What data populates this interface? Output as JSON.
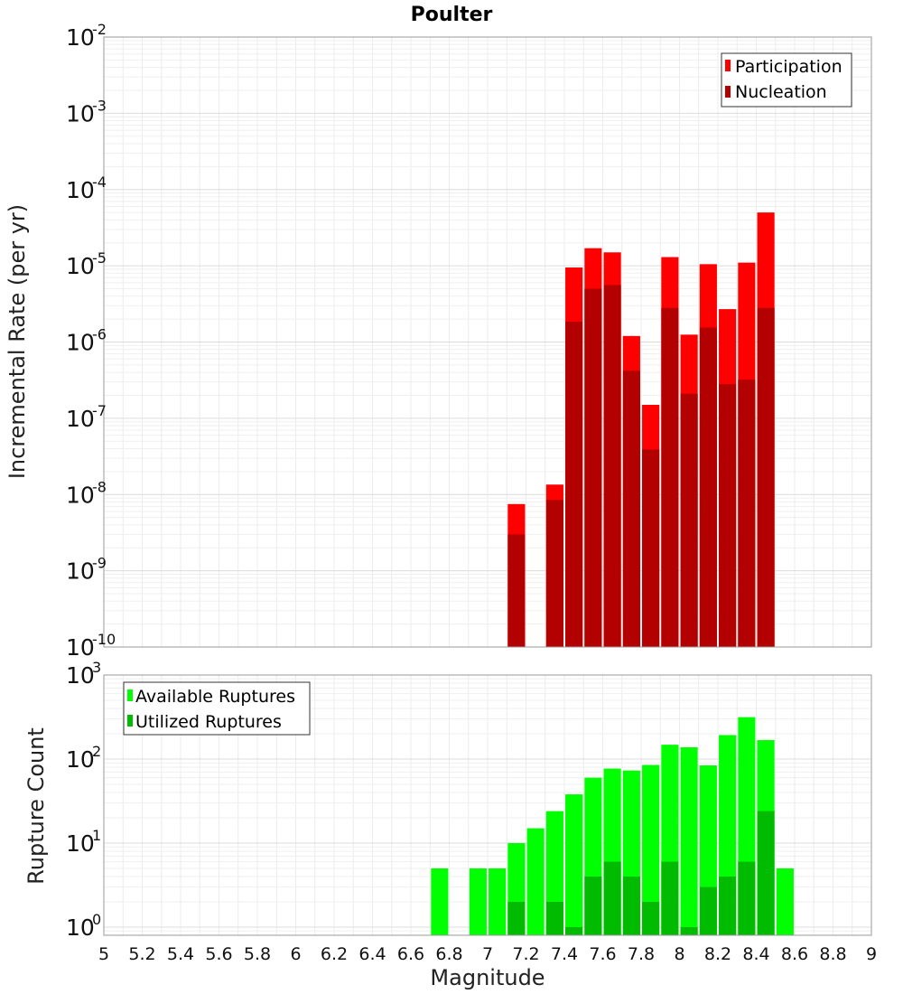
{
  "chart_data": [
    {
      "type": "bar",
      "title": "Poulter",
      "xlabel": "",
      "ylabel": "Incremental Rate (per yr)",
      "yscale": "log",
      "ylim": [
        1e-10,
        0.01
      ],
      "xlim": [
        5,
        9
      ],
      "grid": true,
      "legend_position": "top-right",
      "y_tick_labels": [
        {
          "base": "10",
          "exp": "-2"
        },
        {
          "base": "10",
          "exp": "-3"
        },
        {
          "base": "10",
          "exp": "-4"
        },
        {
          "base": "10",
          "exp": "-5"
        },
        {
          "base": "10",
          "exp": "-6"
        },
        {
          "base": "10",
          "exp": "-7"
        },
        {
          "base": "10",
          "exp": "-8"
        },
        {
          "base": "10",
          "exp": "-9"
        },
        {
          "base": "10",
          "exp": "-10"
        }
      ],
      "bar_width": 0.09,
      "series": [
        {
          "name": "Participation",
          "color": "#ff0000",
          "points": [
            {
              "x": 7.15,
              "y": 7.5e-09
            },
            {
              "x": 7.35,
              "y": 1.35e-08
            },
            {
              "x": 7.45,
              "y": 9.5e-06
            },
            {
              "x": 7.55,
              "y": 1.7e-05
            },
            {
              "x": 7.65,
              "y": 1.5e-05
            },
            {
              "x": 7.75,
              "y": 1.2e-06
            },
            {
              "x": 7.85,
              "y": 1.5e-07
            },
            {
              "x": 7.95,
              "y": 1.3e-05
            },
            {
              "x": 8.05,
              "y": 1.25e-06
            },
            {
              "x": 8.15,
              "y": 1.05e-05
            },
            {
              "x": 8.25,
              "y": 2.7e-06
            },
            {
              "x": 8.35,
              "y": 1.1e-05
            },
            {
              "x": 8.45,
              "y": 5e-05
            }
          ]
        },
        {
          "name": "Nucleation",
          "color": "#b30000",
          "points": [
            {
              "x": 7.15,
              "y": 3e-09
            },
            {
              "x": 7.35,
              "y": 8.5e-09
            },
            {
              "x": 7.45,
              "y": 1.85e-06
            },
            {
              "x": 7.55,
              "y": 5e-06
            },
            {
              "x": 7.65,
              "y": 5.6e-06
            },
            {
              "x": 7.75,
              "y": 4.2e-07
            },
            {
              "x": 7.85,
              "y": 3.9e-08
            },
            {
              "x": 7.95,
              "y": 2.8e-06
            },
            {
              "x": 8.05,
              "y": 2.1e-07
            },
            {
              "x": 8.15,
              "y": 1.55e-06
            },
            {
              "x": 8.25,
              "y": 2.8e-07
            },
            {
              "x": 8.35,
              "y": 3.2e-07
            },
            {
              "x": 8.45,
              "y": 2.8e-06
            }
          ]
        }
      ]
    },
    {
      "type": "bar",
      "title": "",
      "xlabel": "Magnitude",
      "ylabel": "Rupture Count",
      "yscale": "log",
      "ylim": [
        0.8,
        1000
      ],
      "xlim": [
        5,
        9
      ],
      "grid": true,
      "legend_position": "top-left",
      "x_tick_labels": [
        "5",
        "5.2",
        "5.4",
        "5.6",
        "5.8",
        "6",
        "6.2",
        "6.4",
        "6.6",
        "6.8",
        "7",
        "7.2",
        "7.4",
        "7.6",
        "7.8",
        "8",
        "8.2",
        "8.4",
        "8.6",
        "8.8",
        "9"
      ],
      "y_tick_labels": [
        {
          "base": "10",
          "exp": "3"
        },
        {
          "base": "10",
          "exp": "2"
        },
        {
          "base": "10",
          "exp": "1"
        },
        {
          "base": "10",
          "exp": "0"
        }
      ],
      "bar_width": 0.09,
      "series": [
        {
          "name": "Available Ruptures",
          "color": "#00ff00",
          "points": [
            {
              "x": 6.75,
              "y": 5
            },
            {
              "x": 6.95,
              "y": 5
            },
            {
              "x": 7.05,
              "y": 5
            },
            {
              "x": 7.15,
              "y": 10
            },
            {
              "x": 7.25,
              "y": 15
            },
            {
              "x": 7.35,
              "y": 24
            },
            {
              "x": 7.45,
              "y": 38
            },
            {
              "x": 7.55,
              "y": 60
            },
            {
              "x": 7.65,
              "y": 77
            },
            {
              "x": 7.75,
              "y": 73
            },
            {
              "x": 7.85,
              "y": 85
            },
            {
              "x": 7.95,
              "y": 148
            },
            {
              "x": 8.05,
              "y": 138
            },
            {
              "x": 8.15,
              "y": 84
            },
            {
              "x": 8.25,
              "y": 193
            },
            {
              "x": 8.35,
              "y": 315
            },
            {
              "x": 8.45,
              "y": 168
            },
            {
              "x": 8.55,
              "y": 5
            }
          ]
        },
        {
          "name": "Utilized Ruptures",
          "color": "#00bb00",
          "points": [
            {
              "x": 7.15,
              "y": 2
            },
            {
              "x": 7.35,
              "y": 2
            },
            {
              "x": 7.45,
              "y": 1
            },
            {
              "x": 7.55,
              "y": 4
            },
            {
              "x": 7.65,
              "y": 6
            },
            {
              "x": 7.75,
              "y": 4
            },
            {
              "x": 7.85,
              "y": 2
            },
            {
              "x": 7.95,
              "y": 6
            },
            {
              "x": 8.05,
              "y": 1
            },
            {
              "x": 8.15,
              "y": 3
            },
            {
              "x": 8.25,
              "y": 4
            },
            {
              "x": 8.35,
              "y": 6
            },
            {
              "x": 8.45,
              "y": 24
            }
          ]
        }
      ]
    }
  ]
}
